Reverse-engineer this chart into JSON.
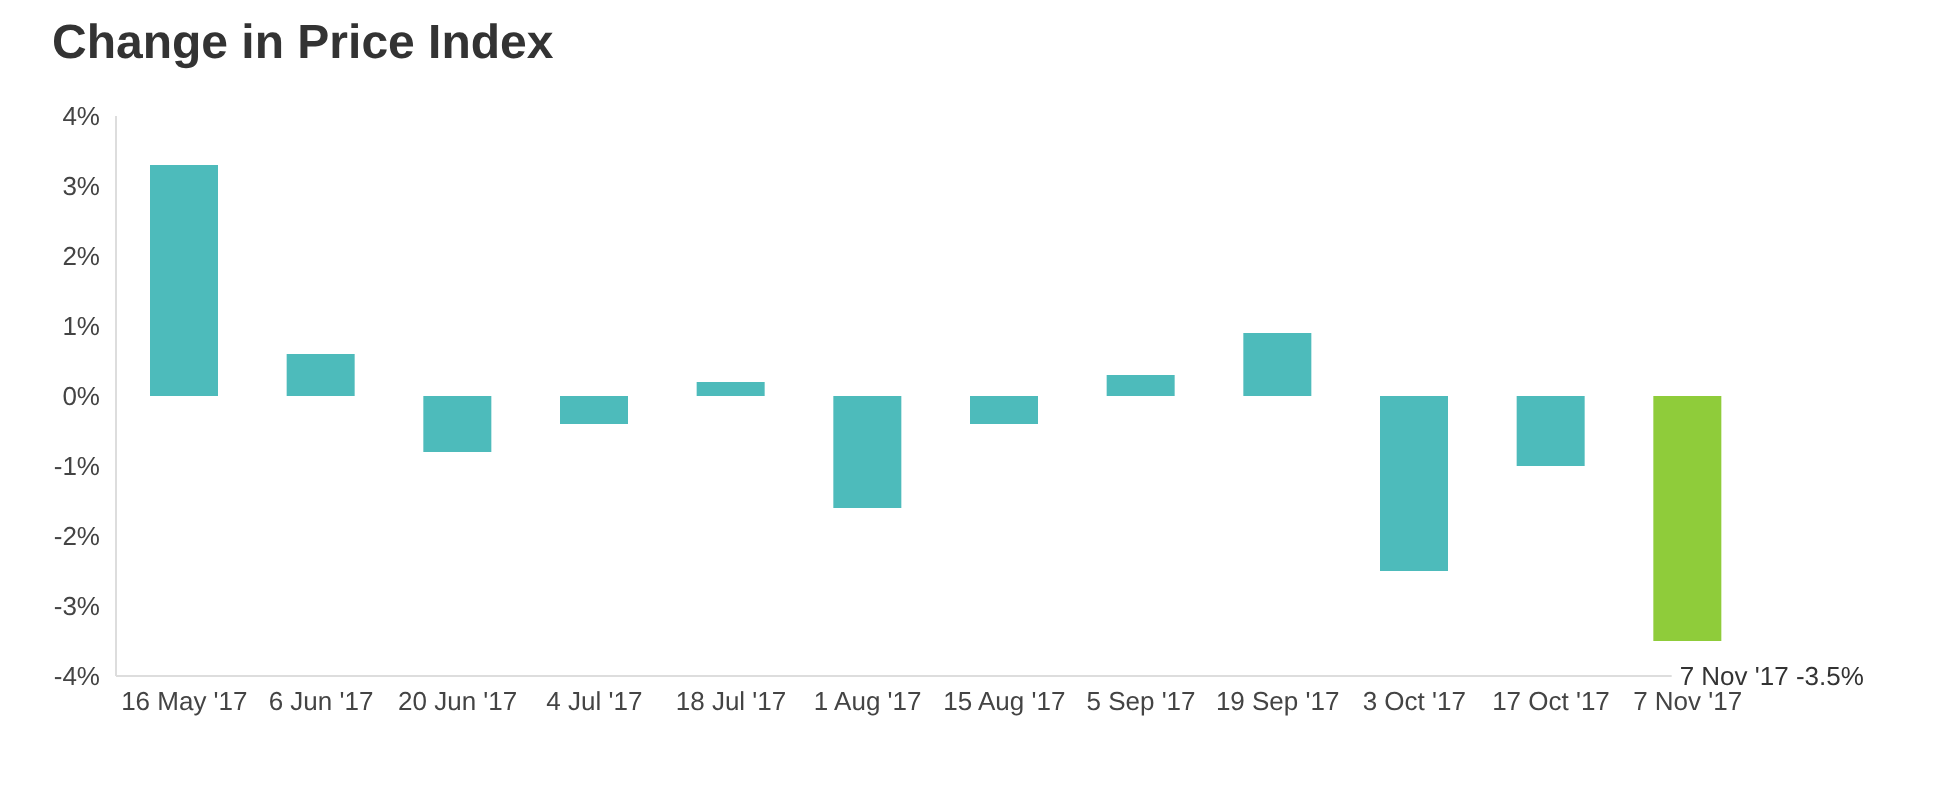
{
  "chart_data": {
    "type": "bar",
    "title": "Change in Price Index",
    "categories": [
      "16 May '17",
      "6 Jun '17",
      "20 Jun '17",
      "4 Jul '17",
      "18 Jul '17",
      "1 Aug '17",
      "15 Aug '17",
      "5 Sep '17",
      "19 Sep '17",
      "3 Oct '17",
      "17 Oct '17",
      "7 Nov '17"
    ],
    "values": [
      3.3,
      0.6,
      -0.8,
      -0.4,
      0.2,
      -1.6,
      -0.4,
      0.3,
      0.9,
      -2.5,
      -1.0,
      -3.5
    ],
    "colors": [
      "#4dbbbb",
      "#4dbbbb",
      "#4dbbbb",
      "#4dbbbb",
      "#4dbbbb",
      "#4dbbbb",
      "#4dbbbb",
      "#4dbbbb",
      "#4dbbbb",
      "#4dbbbb",
      "#4dbbbb",
      "#8fcc3a"
    ],
    "ylim": [
      -4,
      4
    ],
    "yticks": [
      {
        "value": -4,
        "label": "-4%"
      },
      {
        "value": -3,
        "label": "-3%"
      },
      {
        "value": -2,
        "label": "-2%"
      },
      {
        "value": -1,
        "label": "-1%"
      },
      {
        "value": 0,
        "label": "0%"
      },
      {
        "value": 1,
        "label": "1%"
      },
      {
        "value": 2,
        "label": "2%"
      },
      {
        "value": 3,
        "label": "3%"
      },
      {
        "value": 4,
        "label": "4%"
      }
    ],
    "annotations": [
      {
        "text": "7 Nov '17  -3.5%",
        "x": "7 Nov '17",
        "y": -3.5
      }
    ],
    "grid": false,
    "legend": false
  }
}
